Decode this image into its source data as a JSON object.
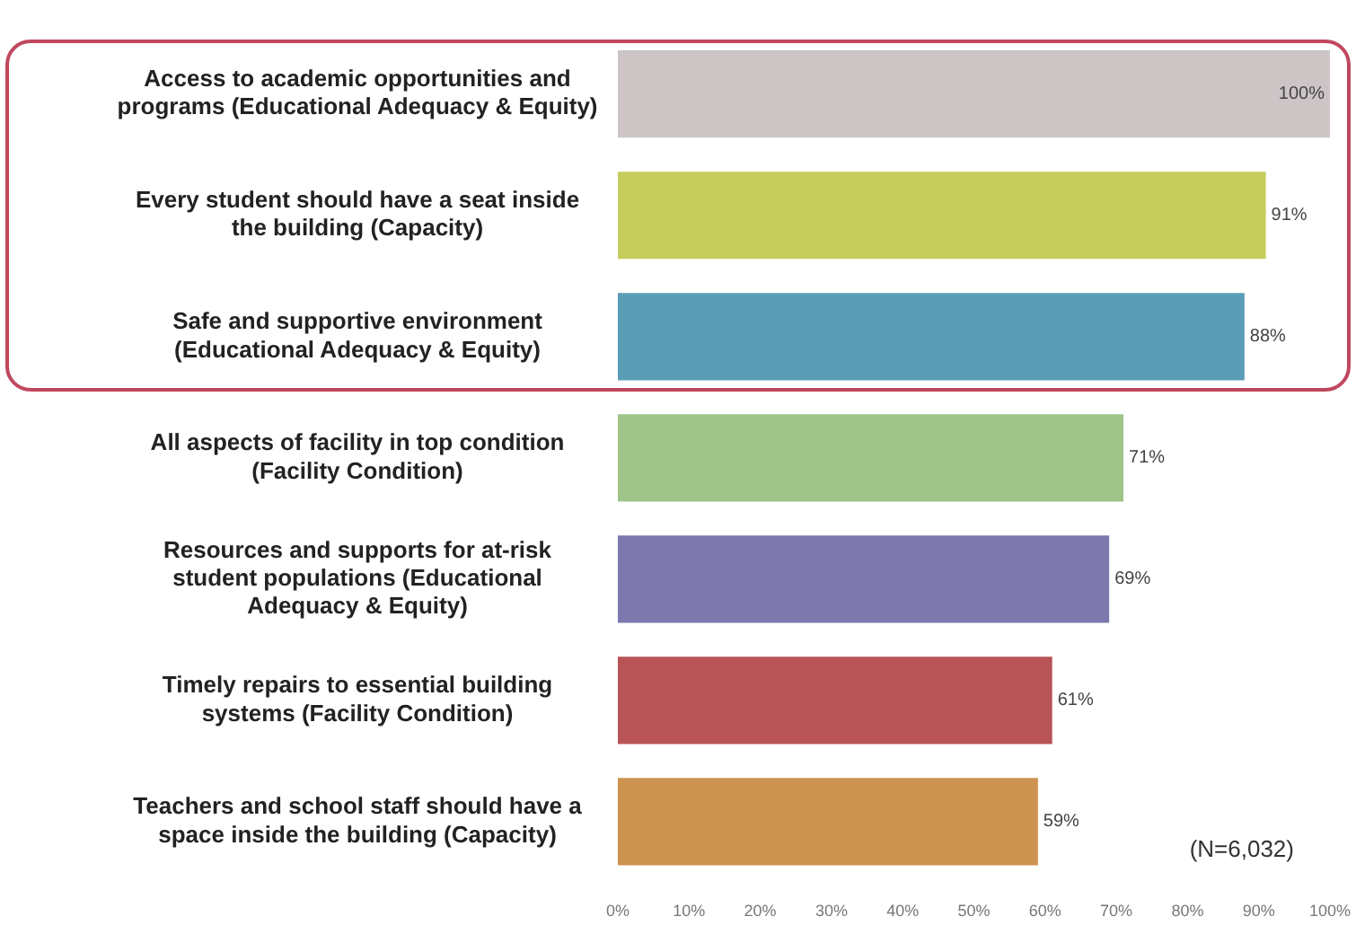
{
  "chart_data": {
    "type": "bar",
    "orientation": "horizontal",
    "categories": [
      "Access to academic opportunities and programs (Educational Adequacy & Equity)",
      "Every student should have a seat inside the building (Capacity)",
      "Safe and supportive environment (Educational Adequacy & Equity)",
      "All aspects of facility in top condition (Facility Condition)",
      "Resources and supports for at-risk student populations (Educational Adequacy & Equity)",
      "Timely repairs to essential building systems (Facility Condition)",
      "Teachers and school staff should have a space inside the building (Capacity)"
    ],
    "values": [
      100,
      91,
      88,
      71,
      69,
      61,
      59
    ],
    "colors": [
      "#cdc4c6",
      "#c5cc5c",
      "#5b9db5",
      "#9ec488",
      "#7d78ae",
      "#b85456",
      "#cc9450"
    ],
    "value_labels": [
      "100%",
      "91%",
      "88%",
      "71%",
      "69%",
      "61%",
      "59%"
    ],
    "xlim": [
      0,
      100
    ],
    "xticks": [
      {
        "value": 0,
        "label": "0%"
      },
      {
        "value": 10,
        "label": "10%"
      },
      {
        "value": 20,
        "label": "20%"
      },
      {
        "value": 30,
        "label": "30%"
      },
      {
        "value": 40,
        "label": "40%"
      },
      {
        "value": 50,
        "label": "50%"
      },
      {
        "value": 60,
        "label": "60%"
      },
      {
        "value": 70,
        "label": "70%"
      },
      {
        "value": 80,
        "label": "80%"
      },
      {
        "value": 90,
        "label": "90%"
      },
      {
        "value": 100,
        "label": "100%"
      }
    ],
    "grid": false,
    "legend": false,
    "annotations": [
      "(N=6,032)"
    ]
  }
}
